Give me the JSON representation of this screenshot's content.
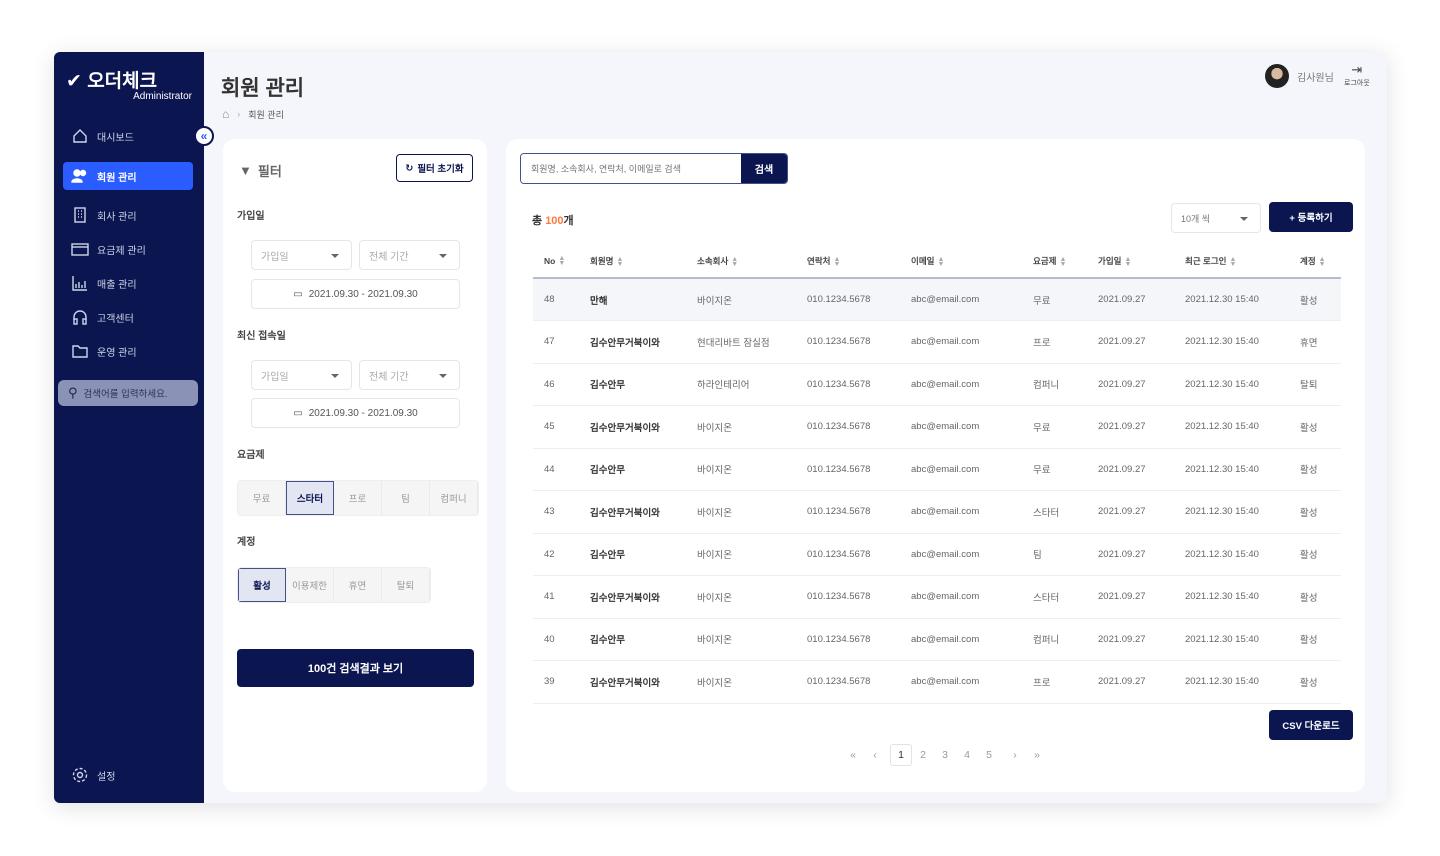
{
  "brand": {
    "name": "오더체크",
    "sub": "Administrator"
  },
  "sidebar": {
    "items": [
      {
        "label": "대시보드",
        "icon": "home-icon"
      },
      {
        "label": "회원 관리",
        "icon": "users-icon",
        "active": true
      },
      {
        "label": "회사 관리",
        "icon": "building-icon"
      },
      {
        "label": "요금제 관리",
        "icon": "card-icon"
      },
      {
        "label": "매출 관리",
        "icon": "chart-icon"
      },
      {
        "label": "고객센터",
        "icon": "headset-icon"
      },
      {
        "label": "운영 관리",
        "icon": "folder-icon"
      }
    ],
    "search_placeholder": "검색어를 입력하세요.",
    "settings": "설정"
  },
  "header": {
    "title": "회원 관리",
    "breadcrumb": "회원 관리",
    "user": "김사원님",
    "logout": "로그아웃"
  },
  "filter": {
    "title": "필터",
    "reset": "필터 초기화",
    "join": {
      "label": "가입일",
      "type": "가입일",
      "period": "전체 기간",
      "range": "2021.09.30 - 2021.09.30"
    },
    "login": {
      "label": "최신 접속일",
      "type": "가입일",
      "period": "전체 기간",
      "range": "2021.09.30 - 2021.09.30"
    },
    "plan": {
      "label": "요금제",
      "options": [
        "무료",
        "스타터",
        "프로",
        "팀",
        "컴퍼니"
      ],
      "selected": "스타터"
    },
    "account": {
      "label": "계정",
      "options": [
        "활성",
        "이용제한",
        "휴면",
        "탈퇴"
      ],
      "selected": "활성"
    },
    "submit": "100건 검색결과 보기"
  },
  "main": {
    "search_placeholder": "회원명, 소속회사, 연락처, 이메일로 검색",
    "search_button": "검색",
    "total_prefix": "총 ",
    "total_count": "100",
    "total_suffix": "개",
    "page_size": "10개 씩",
    "register": "+ 등록하기",
    "csv": "CSV 다운로드",
    "accent": "#ff7a3d"
  },
  "table": {
    "columns": [
      "No",
      "회원명",
      "소속회사",
      "연락처",
      "이메일",
      "요금제",
      "가입일",
      "최근 로그인",
      "계정"
    ],
    "rows": [
      [
        "48",
        "만해",
        "바이지온",
        "010.1234.5678",
        "abc@email.com",
        "무료",
        "2021.09.27",
        "2021.12.30 15:40",
        "활성"
      ],
      [
        "47",
        "김수안무거북이와",
        "현대리바트 잠실점",
        "010.1234.5678",
        "abc@email.com",
        "프로",
        "2021.09.27",
        "2021.12.30 15:40",
        "휴면"
      ],
      [
        "46",
        "김수안무",
        "하라인테리어",
        "010.1234.5678",
        "abc@email.com",
        "컴퍼니",
        "2021.09.27",
        "2021.12.30 15:40",
        "탈퇴"
      ],
      [
        "45",
        "김수안무거북이와",
        "바이지온",
        "010.1234.5678",
        "abc@email.com",
        "무료",
        "2021.09.27",
        "2021.12.30 15:40",
        "활성"
      ],
      [
        "44",
        "김수안무",
        "바이지온",
        "010.1234.5678",
        "abc@email.com",
        "무료",
        "2021.09.27",
        "2021.12.30 15:40",
        "활성"
      ],
      [
        "43",
        "김수안무거북이와",
        "바이지온",
        "010.1234.5678",
        "abc@email.com",
        "스타터",
        "2021.09.27",
        "2021.12.30 15:40",
        "활성"
      ],
      [
        "42",
        "김수안무",
        "바이지온",
        "010.1234.5678",
        "abc@email.com",
        "팀",
        "2021.09.27",
        "2021.12.30 15:40",
        "활성"
      ],
      [
        "41",
        "김수안무거북이와",
        "바이지온",
        "010.1234.5678",
        "abc@email.com",
        "스타터",
        "2021.09.27",
        "2021.12.30 15:40",
        "활성"
      ],
      [
        "40",
        "김수안무",
        "바이지온",
        "010.1234.5678",
        "abc@email.com",
        "컴퍼니",
        "2021.09.27",
        "2021.12.30 15:40",
        "활성"
      ],
      [
        "39",
        "김수안무거북이와",
        "바이지온",
        "010.1234.5678",
        "abc@email.com",
        "프로",
        "2021.09.27",
        "2021.12.30 15:40",
        "활성"
      ]
    ]
  },
  "pagination": {
    "pages": [
      "1",
      "2",
      "3",
      "4",
      "5"
    ],
    "current": "1"
  }
}
